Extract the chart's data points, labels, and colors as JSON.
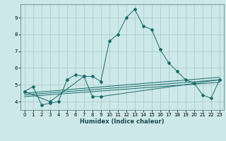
{
  "xlabel": "Humidex (Indice chaleur)",
  "bg_color": "#cce8e8",
  "grid_color": "#aac8c8",
  "line_color": "#1a6b6b",
  "xlim": [
    -0.5,
    23.5
  ],
  "ylim": [
    3.5,
    9.8
  ],
  "xticks": [
    0,
    1,
    2,
    3,
    4,
    5,
    6,
    7,
    8,
    9,
    10,
    11,
    12,
    13,
    14,
    15,
    16,
    17,
    18,
    19,
    20,
    21,
    22,
    23
  ],
  "yticks": [
    4,
    5,
    6,
    7,
    8,
    9
  ],
  "main_line_x": [
    0,
    1,
    2,
    3,
    4,
    5,
    6,
    7,
    8,
    9,
    10,
    11,
    12,
    13,
    14,
    15,
    16,
    17,
    18,
    19,
    20,
    21,
    22,
    23
  ],
  "main_line_y": [
    4.6,
    4.9,
    3.8,
    3.9,
    4.0,
    5.3,
    5.6,
    5.5,
    5.5,
    5.2,
    7.6,
    8.0,
    9.0,
    9.5,
    8.5,
    8.3,
    7.1,
    6.3,
    5.8,
    5.3,
    5.1,
    4.4,
    4.2,
    5.3
  ],
  "line2_x": [
    0,
    3,
    7,
    8,
    9,
    23
  ],
  "line2_y": [
    4.6,
    4.0,
    5.5,
    4.3,
    4.3,
    5.3
  ],
  "line3_x": [
    0,
    23
  ],
  "line3_y": [
    4.5,
    5.45
  ],
  "line4_x": [
    0,
    23
  ],
  "line4_y": [
    4.4,
    5.3
  ],
  "line5_x": [
    0,
    23
  ],
  "line5_y": [
    4.3,
    5.15
  ]
}
